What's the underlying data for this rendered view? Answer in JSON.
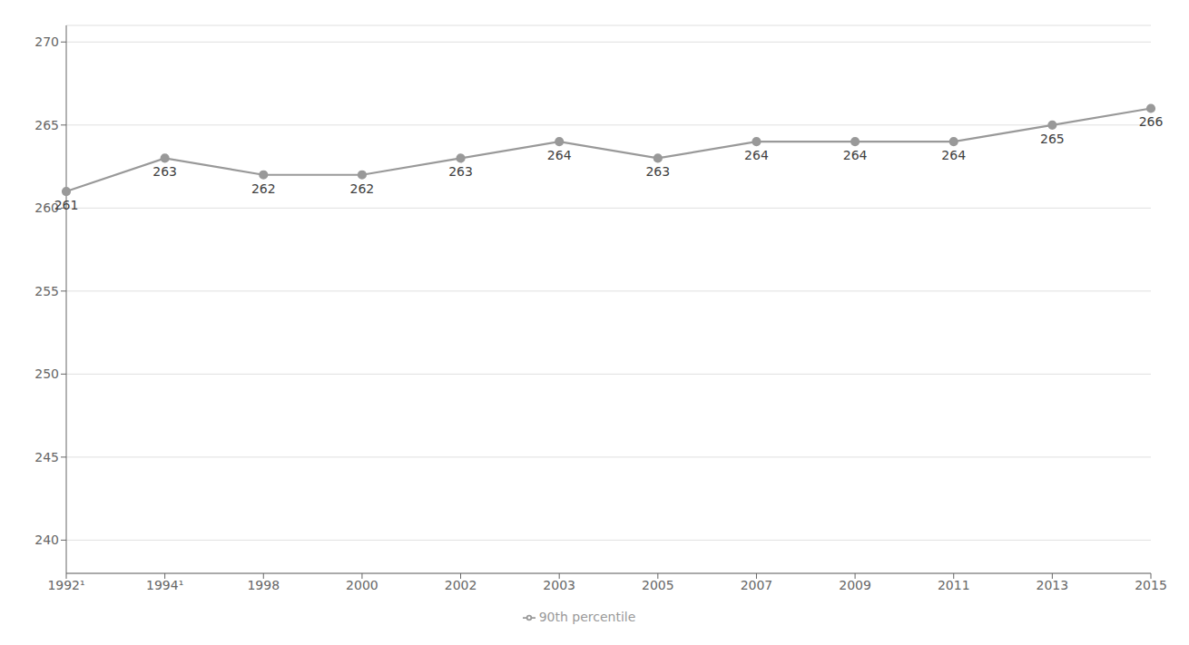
{
  "chart_data": {
    "type": "line",
    "categories": [
      "1992¹",
      "1994¹",
      "1998",
      "2000",
      "2002",
      "2003",
      "2005",
      "2007",
      "2009",
      "2011",
      "2013",
      "2015"
    ],
    "series": [
      {
        "name": "90th percentile",
        "color": "#999999",
        "values": [
          261,
          263,
          262,
          262,
          263,
          264,
          263,
          264,
          264,
          264,
          265,
          266
        ]
      }
    ],
    "ylim": [
      238,
      271
    ],
    "yticks": [
      240,
      245,
      250,
      255,
      260,
      265,
      270
    ],
    "grid": true,
    "data_labels": true,
    "legend": "bottom",
    "marker": "circle"
  }
}
